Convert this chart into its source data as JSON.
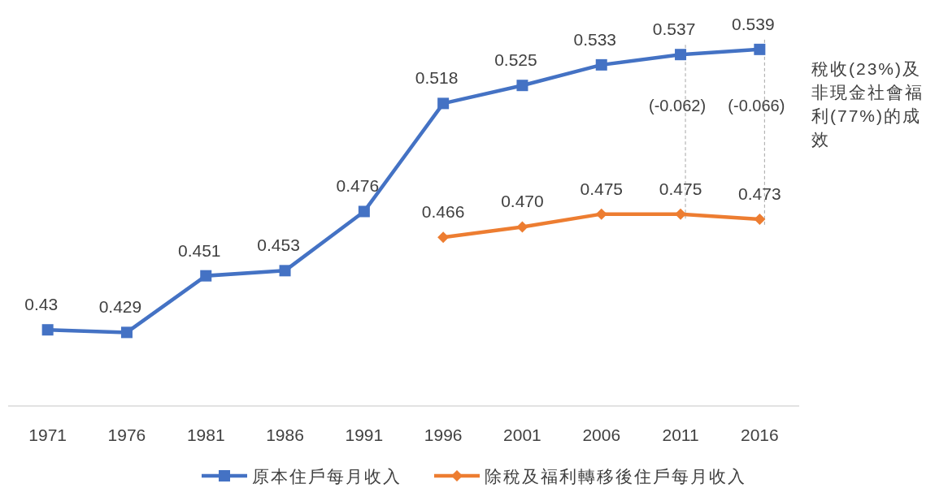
{
  "chart_data": {
    "type": "line",
    "categories": [
      "1971",
      "1976",
      "1981",
      "1986",
      "1991",
      "1996",
      "2001",
      "2006",
      "2011",
      "2016"
    ],
    "series": [
      {
        "name": "原本住戶每月收入",
        "color": "#4472c4",
        "marker": "square",
        "values": [
          0.43,
          0.429,
          0.451,
          0.453,
          0.476,
          0.518,
          0.525,
          0.533,
          0.537,
          0.539
        ],
        "value_labels": [
          "0.43",
          "0.429",
          "0.451",
          "0.453",
          "0.476",
          "0.518",
          "0.525",
          "0.533",
          "0.537",
          "0.539"
        ]
      },
      {
        "name": "除稅及福利轉移後住戶每月收入",
        "color": "#ed7d31",
        "marker": "diamond",
        "values": [
          null,
          null,
          null,
          null,
          null,
          0.466,
          0.47,
          0.475,
          0.475,
          0.473
        ],
        "value_labels": [
          null,
          null,
          null,
          null,
          null,
          "0.466",
          "0.470",
          "0.475",
          "0.475",
          "0.473"
        ]
      }
    ],
    "annotations": [
      "稅收(23%)及非現金社會福利(77%)的成效",
      "(-0.062)",
      "(-0.066)"
    ],
    "legend": "bottom",
    "grid": false
  }
}
